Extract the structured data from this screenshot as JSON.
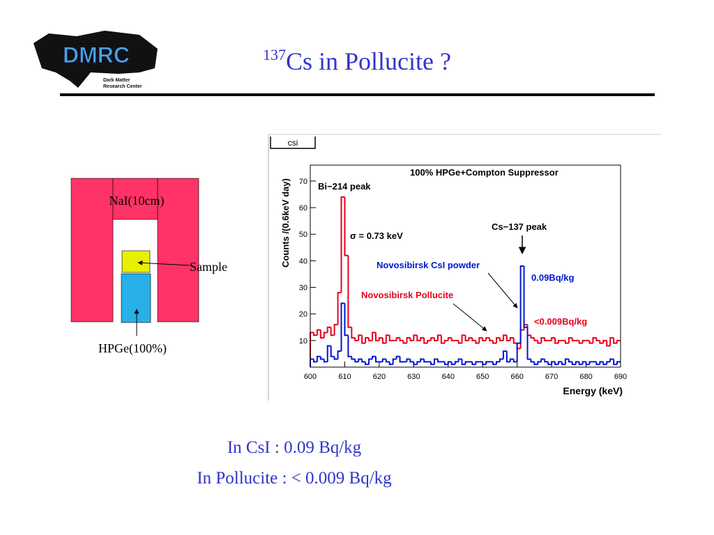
{
  "logo": {
    "name": "DMRC",
    "line1": "Dark Matter",
    "line2": "Research Center"
  },
  "title": {
    "superscript": "137",
    "text": "Cs in Pollucite ?"
  },
  "diagram": {
    "nai": "NaI(10cm)",
    "sample": "Sample",
    "hpge": "HPGe(100%)"
  },
  "chart_data": {
    "type": "histogram",
    "title": "csi",
    "x_label": "Energy (keV)",
    "y_label": "Counts /(0.6keV day)",
    "bins": [
      600,
      601,
      602,
      603,
      604,
      605,
      606,
      607,
      608,
      609,
      610,
      611,
      612,
      613,
      614,
      615,
      616,
      617,
      618,
      619,
      620,
      621,
      622,
      623,
      624,
      625,
      626,
      627,
      628,
      629,
      630,
      631,
      632,
      633,
      634,
      635,
      636,
      637,
      638,
      639,
      640,
      641,
      642,
      643,
      644,
      645,
      646,
      647,
      648,
      649,
      650,
      651,
      652,
      653,
      654,
      655,
      656,
      657,
      658,
      659,
      660,
      661,
      662,
      663,
      664,
      665,
      666,
      667,
      668,
      669,
      670,
      671,
      672,
      673,
      674,
      675,
      676,
      677,
      678,
      679,
      680,
      681,
      682,
      683,
      684,
      685,
      686,
      687,
      688,
      689,
      690
    ],
    "series": [
      {
        "name": "Novosibirsk Pollucite",
        "color": "#e8001c",
        "values": [
          13,
          12,
          14,
          11,
          13,
          15,
          12,
          16,
          28,
          64,
          42,
          15,
          11,
          10,
          12,
          9,
          11,
          10,
          13,
          10,
          11,
          9,
          12,
          10,
          10,
          11,
          10,
          9,
          11,
          10,
          12,
          10,
          11,
          9,
          10,
          11,
          10,
          12,
          9,
          10,
          11,
          10,
          10,
          9,
          12,
          10,
          11,
          10,
          9,
          11,
          10,
          11,
          10,
          9,
          11,
          10,
          12,
          10,
          11,
          9,
          7,
          14,
          16,
          12,
          11,
          10,
          9,
          11,
          10,
          10,
          11,
          9,
          10,
          10,
          9,
          11,
          10,
          10,
          9,
          10,
          10,
          9,
          11,
          10,
          9,
          10,
          8,
          11,
          9,
          10
        ]
      },
      {
        "name": "Novosibirsk CsI powder",
        "color": "#0016d0",
        "values": [
          3,
          2,
          4,
          3,
          2,
          8,
          4,
          3,
          6,
          24,
          12,
          4,
          3,
          2,
          3,
          2,
          1,
          3,
          4,
          2,
          2,
          3,
          2,
          1,
          3,
          4,
          2,
          2,
          3,
          2,
          1,
          2,
          3,
          2,
          2,
          1,
          3,
          2,
          2,
          1,
          2,
          1,
          2,
          3,
          1,
          2,
          2,
          1,
          2,
          2,
          1,
          2,
          2,
          1,
          2,
          3,
          6,
          2,
          3,
          2,
          9,
          38,
          15,
          3,
          2,
          1,
          2,
          3,
          2,
          1,
          2,
          1,
          2,
          1,
          3,
          2,
          1,
          2,
          1,
          2,
          1,
          2,
          2,
          1,
          2,
          1,
          2,
          3,
          1,
          2
        ]
      }
    ],
    "xlim": [
      600,
      690
    ],
    "xticks": [
      600,
      610,
      620,
      630,
      640,
      650,
      660,
      670,
      680,
      690
    ],
    "ylim": [
      0,
      76
    ],
    "yticks": [
      10,
      20,
      30,
      40,
      50,
      60,
      70
    ],
    "annotations": [
      {
        "text": "100% HPGe+Compton Suppressor",
        "color": "#000000"
      },
      {
        "text": "Bi−214 peak",
        "color": "#000000"
      },
      {
        "text": "σ = 0.73 keV",
        "color": "#000000"
      },
      {
        "text": "Cs−137 peak",
        "color": "#000000"
      },
      {
        "text": "Novosibirsk CsI powder",
        "color": "#0016d0"
      },
      {
        "text": "0.09Bq/kg",
        "color": "#0016d0"
      },
      {
        "text": "Novosibirsk Pollucite",
        "color": "#e8001c"
      },
      {
        "text": "<0.009Bq/kg",
        "color": "#e8001c"
      }
    ]
  },
  "summary": [
    "In CsI : 0.09 Bq/kg",
    "In Pollucite : < 0.009 Bq/kg"
  ]
}
